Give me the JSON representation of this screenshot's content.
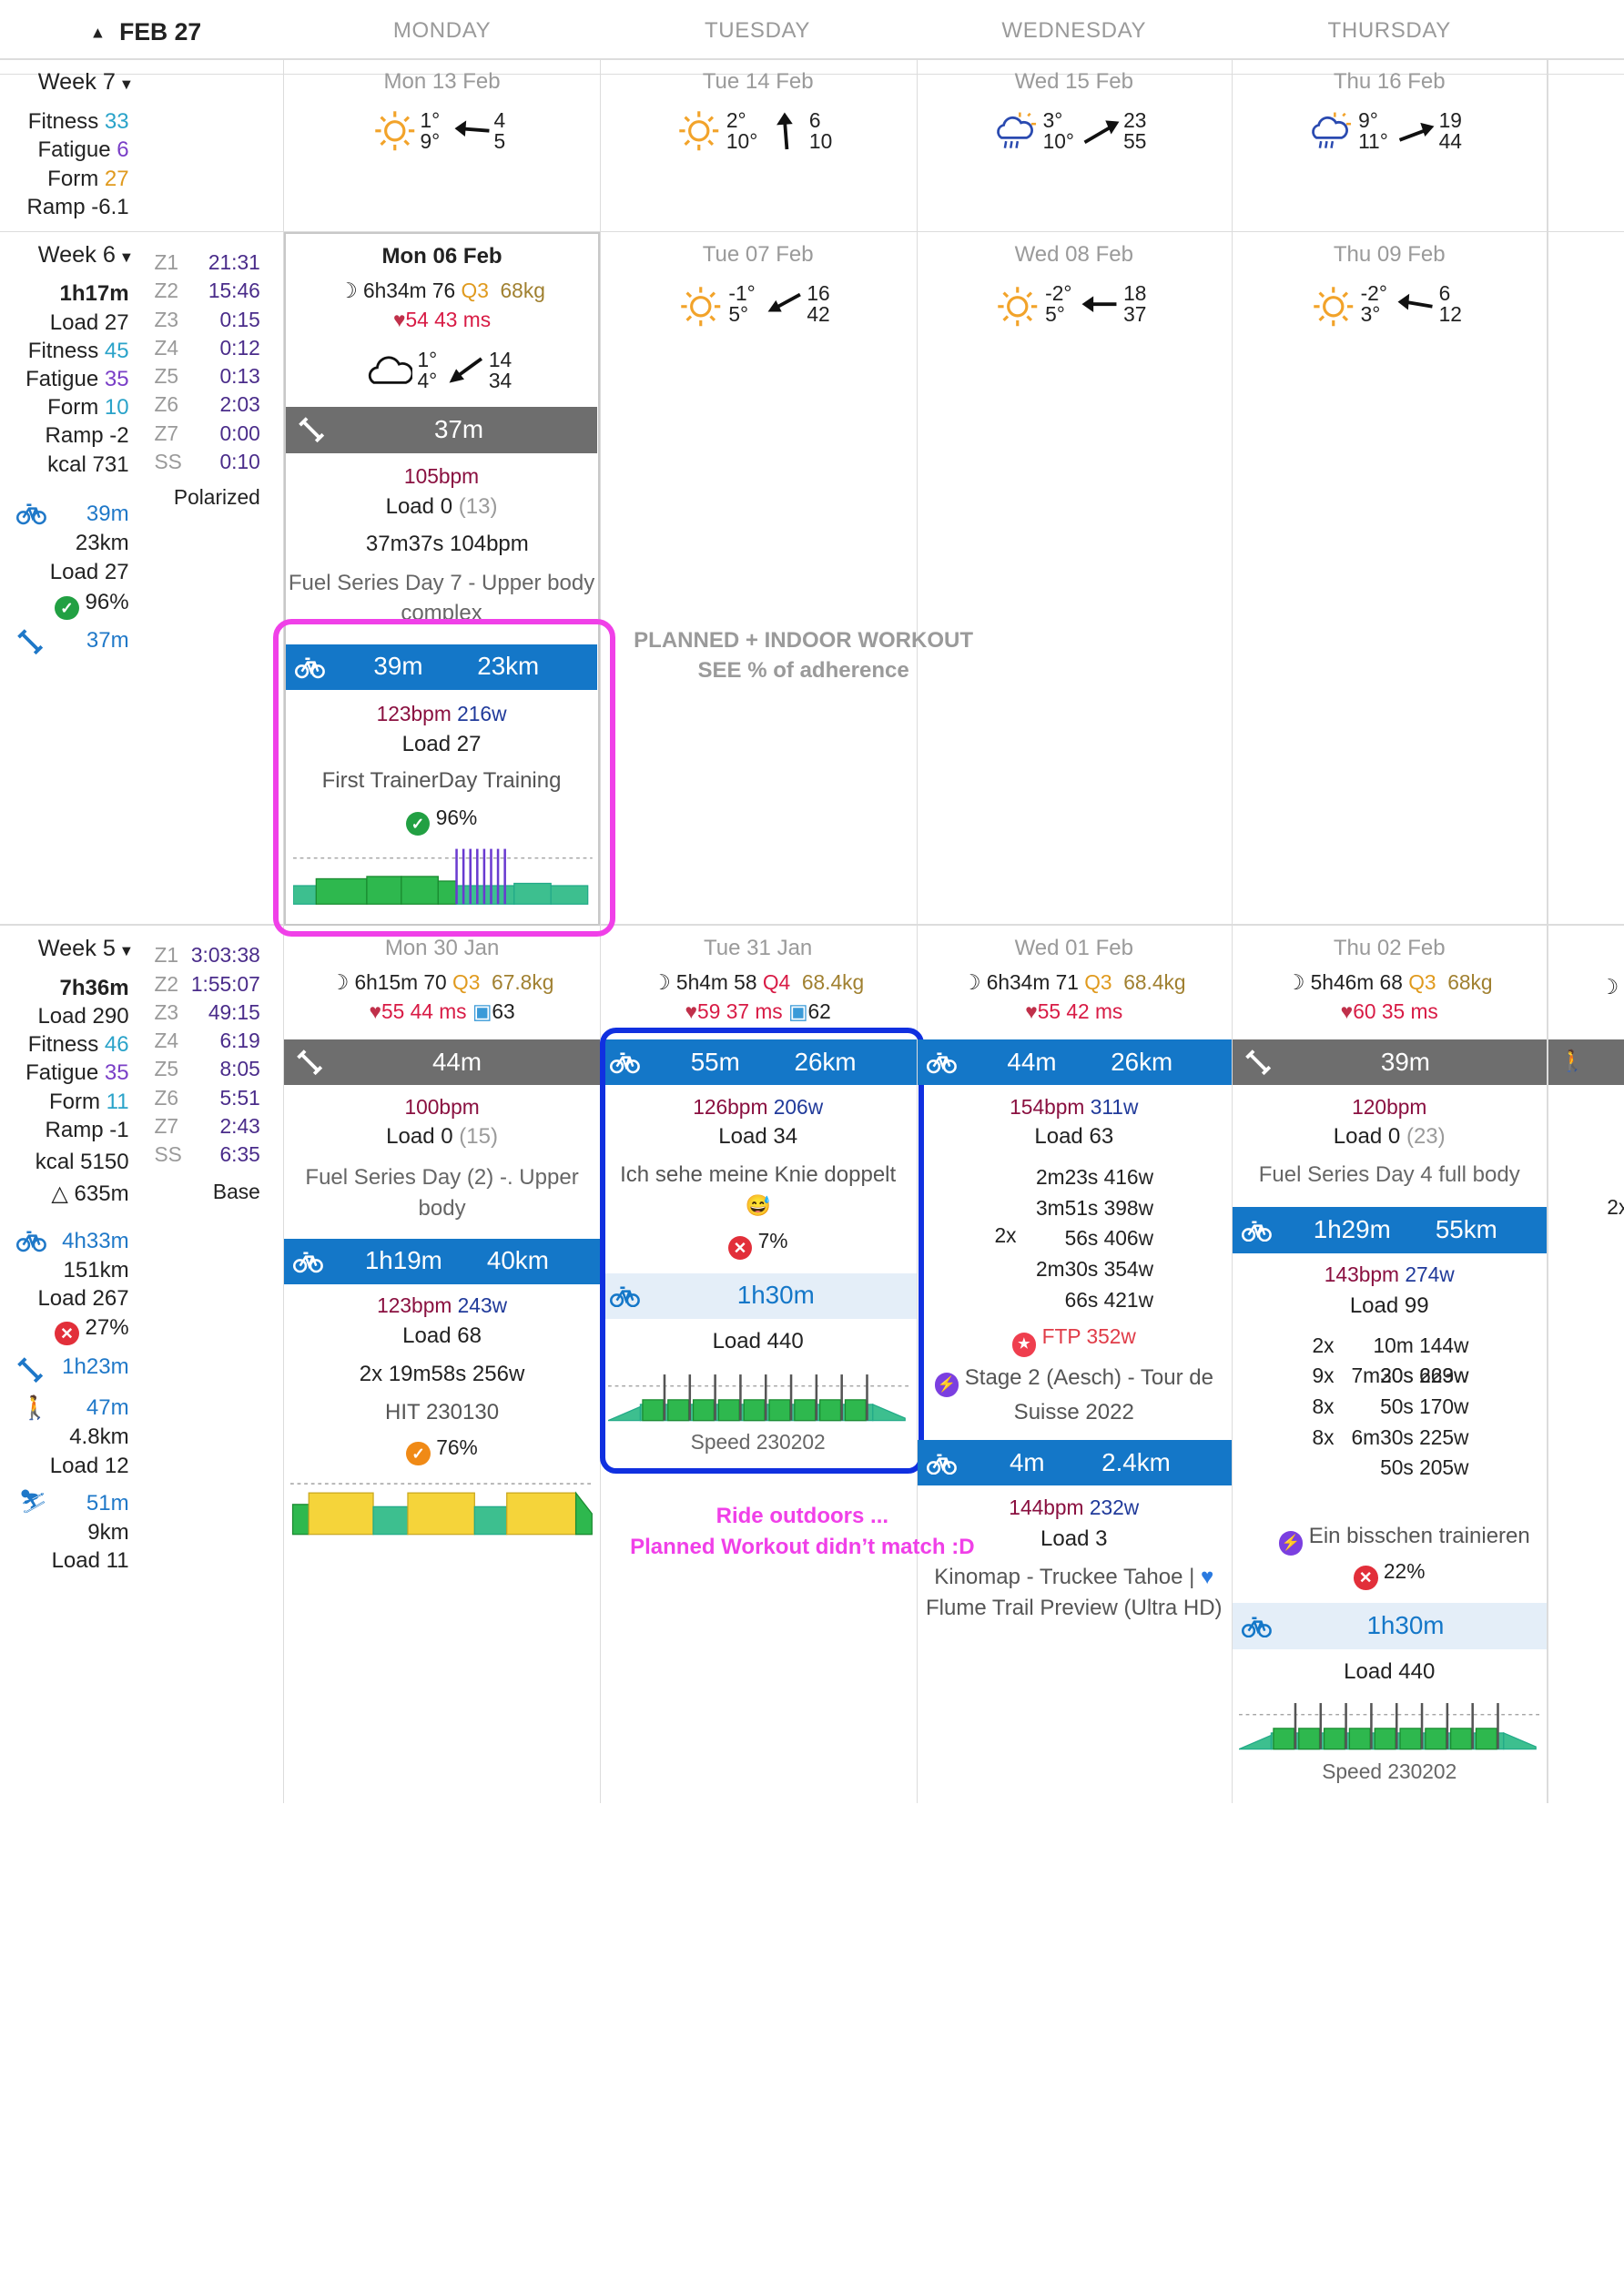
{
  "header": {
    "month": "FEB 27",
    "days": [
      "MONDAY",
      "TUESDAY",
      "WEDNESDAY",
      "THURSDAY"
    ]
  },
  "week7": {
    "label": "Week 7",
    "fitness_label": "Fitness",
    "fitness": "33",
    "fatigue_label": "Fatigue",
    "fatigue": "6",
    "form_label": "Form",
    "form": "27",
    "ramp": "Ramp -6.1",
    "days": [
      {
        "date": "Mon 13 Feb",
        "t1": "1°",
        "t2": "9°",
        "w1": "4",
        "w2": "5"
      },
      {
        "date": "Tue 14 Feb",
        "t1": "2°",
        "t2": "10°",
        "w1": "6",
        "w2": "10"
      },
      {
        "date": "Wed 15 Feb",
        "t1": "3°",
        "t2": "10°",
        "w1": "23",
        "w2": "55"
      },
      {
        "date": "Thu 16 Feb",
        "t1": "9°",
        "t2": "11°",
        "w1": "19",
        "w2": "44"
      }
    ]
  },
  "week6": {
    "label": "Week 6",
    "time": "1h17m",
    "load": "Load 27",
    "fitness_label": "Fitness",
    "fitness": "45",
    "fatigue_label": "Fatigue",
    "fatigue": "35",
    "form_label": "Form",
    "form": "10",
    "ramp": "Ramp -2",
    "kcal": "kcal 731",
    "ride_time": "39m",
    "ride_dist": "23km",
    "ride_load": "Load 27",
    "ride_pct": "96%",
    "str_time": "37m",
    "zones": [
      [
        "Z1",
        "21:31"
      ],
      [
        "Z2",
        "15:46"
      ],
      [
        "Z3",
        "0:15"
      ],
      [
        "Z4",
        "0:12"
      ],
      [
        "Z5",
        "0:13"
      ],
      [
        "Z6",
        "2:03"
      ],
      [
        "Z7",
        "0:00"
      ],
      [
        "SS",
        "0:10"
      ]
    ],
    "zone_type": "Polarized",
    "mon": {
      "date": "Mon 06 Feb",
      "sleep": "6h34m",
      "sleep_score": "76",
      "q": "Q3",
      "weight": "68kg",
      "hr": "54",
      "hrv": "43 ms",
      "t1": "1°",
      "t2": "4°",
      "w1": "14",
      "w2": "34",
      "act1": {
        "time": "37m",
        "hr": "105bpm",
        "load": "Load 0",
        "load_extra": "(13)",
        "detail": "37m37s 104bpm",
        "name": "Fuel Series Day 7 - Upper body",
        "name2": "complex"
      },
      "act2": {
        "time": "39m",
        "dist": "23km",
        "hr": "123bpm",
        "watts": "216w",
        "load": "Load 27",
        "name": "First TrainerDay Training",
        "pct": "96%"
      }
    },
    "tue": {
      "date": "Tue 07 Feb",
      "t1": "-1°",
      "t2": "5°",
      "w1": "16",
      "w2": "42"
    },
    "wed": {
      "date": "Wed 08 Feb",
      "t1": "-2°",
      "t2": "5°",
      "w1": "18",
      "w2": "37"
    },
    "thu": {
      "date": "Thu 09 Feb",
      "t1": "-2°",
      "t2": "3°",
      "w1": "6",
      "w2": "12"
    }
  },
  "week5": {
    "label": "Week 5",
    "time": "7h36m",
    "load": "Load 290",
    "fitness_label": "Fitness",
    "fitness": "46",
    "fatigue_label": "Fatigue",
    "fatigue": "35",
    "form_label": "Form",
    "form": "11",
    "ramp": "Ramp -1",
    "kcal": "kcal 5150",
    "elev": "△ 635m",
    "ride_time": "4h33m",
    "ride_dist": "151km",
    "ride_load": "Load 267",
    "ride_pct": "27%",
    "str_time": "1h23m",
    "walk_time": "47m",
    "walk_dist": "4.8km",
    "walk_load": "Load 12",
    "ski_time": "51m",
    "ski_dist": "9km",
    "ski_load": "Load 11",
    "zones": [
      [
        "Z1",
        "3:03:38"
      ],
      [
        "Z2",
        "1:55:07"
      ],
      [
        "Z3",
        "49:15"
      ],
      [
        "Z4",
        "6:19"
      ],
      [
        "Z5",
        "8:05"
      ],
      [
        "Z6",
        "5:51"
      ],
      [
        "Z7",
        "2:43"
      ],
      [
        "SS",
        "6:35"
      ]
    ],
    "zone_type": "Base",
    "mon": {
      "date": "Mon 30 Jan",
      "sleep": "6h15m",
      "sleep_score": "70",
      "q": "Q3",
      "weight": "67.8kg",
      "hr": "55",
      "hrv": "44 ms",
      "ecg": "63",
      "act1": {
        "time": "44m",
        "hr": "100bpm",
        "load": "Load 0",
        "load_extra": "(15)",
        "name": "Fuel Series Day (2) -. Upper",
        "name2": "body"
      },
      "act2": {
        "time": "1h19m",
        "dist": "40km",
        "hr": "123bpm",
        "watts": "243w",
        "load": "Load 68",
        "detail": "2x 19m58s 256w",
        "name": "HIT 230130",
        "pct": "76%"
      }
    },
    "tue": {
      "date": "Tue 31 Jan",
      "sleep": "5h4m",
      "sleep_score": "58",
      "q": "Q4",
      "weight": "68.4kg",
      "hr": "59",
      "hrv": "37 ms",
      "ecg": "62",
      "act1": {
        "time": "55m",
        "dist": "26km",
        "hr": "126bpm",
        "watts": "206w",
        "load": "Load 34",
        "name": "Ich sehe meine Knie doppelt",
        "emoji": "😅",
        "pct": "7%"
      },
      "plan": {
        "time": "1h30m",
        "load": "Load 440",
        "name": "Speed 230202"
      }
    },
    "wed": {
      "date": "Wed 01 Feb",
      "sleep": "6h34m",
      "sleep_score": "71",
      "q": "Q3",
      "weight": "68.4kg",
      "hr": "55",
      "hrv": "42 ms",
      "act1": {
        "time": "44m",
        "dist": "26km",
        "hr": "154bpm",
        "watts": "311w",
        "load": "Load 63",
        "intervals": [
          "2m23s 416w",
          "3m51s 398w",
          "56s 406w",
          "2m30s 354w",
          "66s 421w"
        ],
        "rep": "2x",
        "ftp": "FTP 352w",
        "name": "Stage 2 (Aesch) - Tour de",
        "name2": "Suisse 2022"
      },
      "act2": {
        "time": "4m",
        "dist": "2.4km",
        "hr": "144bpm",
        "watts": "232w",
        "load": "Load 3",
        "name": "Kinomap - Truckee Tahoe |",
        "name2": "Flume Trail Preview (Ultra HD)"
      }
    },
    "thu": {
      "date": "Thu 02 Feb",
      "sleep": "5h46m",
      "sleep_score": "68",
      "q": "Q3",
      "weight": "68kg",
      "hr": "60",
      "hrv": "35 ms",
      "act1": {
        "time": "39m",
        "hr": "120bpm",
        "load": "Load 0",
        "load_extra": "(23)",
        "name": "Fuel Series Day 4 full body"
      },
      "act2": {
        "time": "1h29m",
        "dist": "55km",
        "hr": "143bpm",
        "watts": "274w",
        "load": "Load 99",
        "intervals": [
          [
            "2x",
            "10m 144w"
          ],
          [
            "",
            "7m30s 229w"
          ],
          [
            "9x",
            "20s 663w"
          ],
          [
            "8x",
            "50s 170w"
          ],
          [
            "8x",
            "6m30s 225w"
          ],
          [
            "",
            "50s 205w"
          ]
        ],
        "name": "Ein bisschen trainieren",
        "pct": "22%"
      },
      "plan": {
        "time": "1h30m",
        "load": "Load 440",
        "name": "Speed 230202"
      }
    },
    "fri_partial": "2x"
  },
  "annotations": {
    "a1": "PLANNED + INDOOR WORKOUT",
    "a2": "SEE % of adherence",
    "a3": "Ride outdoors ...",
    "a4": "Planned Workout didn’t match :D"
  },
  "colors": {
    "accent_blue": "#1477c8",
    "strength_gray": "#6e6e6e",
    "highlight_magenta": "#f040e8",
    "highlight_blue": "#1030e0"
  }
}
